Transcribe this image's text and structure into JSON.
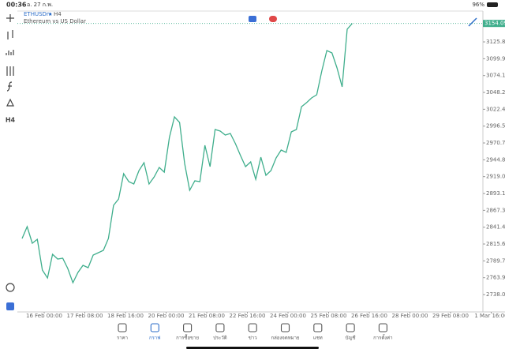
{
  "status_bar": {
    "time": "00:36",
    "date": "อ. 27 ก.พ.",
    "battery": "96%"
  },
  "chart_header": {
    "symbol": "ETHUSDm",
    "timeframe": "H4",
    "description": "Ethereum vs US Dollar"
  },
  "toolbar": {
    "timeframe": "H4"
  },
  "chart_data": {
    "type": "line",
    "color": "#3fae8c",
    "values": [
      2824.1,
      2842.3,
      2816.8,
      2822.9,
      2775.6,
      2763.5,
      2799.9,
      2792.6,
      2793.8,
      2778.0,
      2756.2,
      2772.0,
      2782.9,
      2779.3,
      2798.6,
      2802.3,
      2805.9,
      2824.1,
      2875.0,
      2884.7,
      2923.5,
      2911.4,
      2907.7,
      2928.3,
      2940.4,
      2907.7,
      2918.6,
      2933.2,
      2925.9,
      2979.2,
      3010.7,
      3002.2,
      2939.2,
      2898.0,
      2912.6,
      2911.4,
      2967.1,
      2934.4,
      2991.3,
      2988.9,
      2982.8,
      2985.3,
      2969.5,
      2951.3,
      2934.4,
      2941.7,
      2915.0,
      2948.9,
      2921.1,
      2928.3,
      2947.7,
      2959.8,
      2956.2,
      2987.7,
      2991.3,
      3026.4,
      3032.5,
      3039.8,
      3044.7,
      3081.0,
      3112.5,
      3108.9,
      3085.9,
      3056.8,
      3145.2,
      3154.09
    ],
    "xlim": [
      0,
      92.35
    ],
    "xticks": [
      {
        "value": 4.35,
        "label": "16 Feb 00:00"
      },
      {
        "value": 12.35,
        "label": "17 Feb 08:00"
      },
      {
        "value": 20.35,
        "label": "18 Feb 16:00"
      },
      {
        "value": 28.35,
        "label": "20 Feb 00:00"
      },
      {
        "value": 36.35,
        "label": "21 Feb 08:00"
      },
      {
        "value": 44.35,
        "label": "22 Feb 16:00"
      },
      {
        "value": 52.35,
        "label": "24 Feb 00:00"
      },
      {
        "value": 60.35,
        "label": "25 Feb 08:00"
      },
      {
        "value": 68.35,
        "label": "26 Feb 16:00"
      },
      {
        "value": 76.35,
        "label": "28 Feb 00:00"
      },
      {
        "value": 84.35,
        "label": "29 Feb 08:00"
      },
      {
        "value": 92.35,
        "label": "1 Mar 16:00"
      }
    ],
    "ylim": [
      2711.4,
      3173.1
    ],
    "yticks": [
      {
        "value": 3125.8,
        "label": "3125.80"
      },
      {
        "value": 3099.95,
        "label": "3099.95"
      },
      {
        "value": 3074.1,
        "label": "3074.10"
      },
      {
        "value": 3048.25,
        "label": "3048.25"
      },
      {
        "value": 3022.4,
        "label": "3022.40"
      },
      {
        "value": 2996.55,
        "label": "2996.55"
      },
      {
        "value": 2970.7,
        "label": "2970.70"
      },
      {
        "value": 2944.85,
        "label": "2944.85"
      },
      {
        "value": 2919.0,
        "label": "2919.00"
      },
      {
        "value": 2893.15,
        "label": "2893.15"
      },
      {
        "value": 2867.3,
        "label": "2867.30"
      },
      {
        "value": 2841.45,
        "label": "2841.45"
      },
      {
        "value": 2815.6,
        "label": "2815.60"
      },
      {
        "value": 2789.75,
        "label": "2789.75"
      },
      {
        "value": 2763.9,
        "label": "2763.90"
      },
      {
        "value": 2738.05,
        "label": "2738.05"
      }
    ]
  },
  "bottom_nav": {
    "items": [
      "ราคา",
      "กราฟ",
      "การซื้อขาย",
      "ประวัติ",
      "ข่าว",
      "กล่องจดหมาย",
      "แชท",
      "บัญชี",
      "การตั้งค่า"
    ],
    "active": 1
  }
}
